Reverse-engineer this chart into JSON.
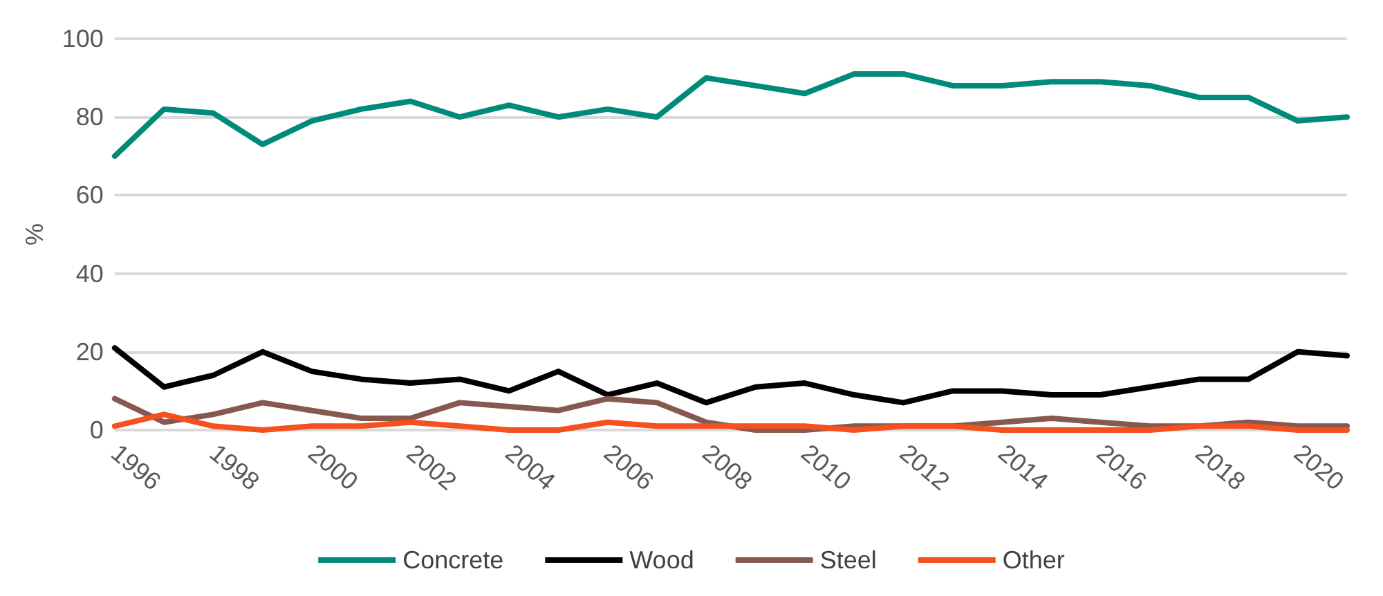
{
  "chart_data": {
    "type": "line",
    "ylabel": "%",
    "categories": [
      "1996",
      null,
      "1998",
      null,
      "2000",
      null,
      "2002",
      null,
      "2004",
      null,
      "2006",
      null,
      "2008",
      null,
      "2010",
      null,
      "2012",
      null,
      "2014",
      null,
      "2016",
      null,
      "2018",
      null,
      "2020",
      null
    ],
    "series": [
      {
        "name": "Concrete",
        "color": "#008a7a",
        "values": [
          70,
          82,
          81,
          73,
          79,
          82,
          84,
          80,
          83,
          80,
          82,
          80,
          90,
          88,
          86,
          91,
          91,
          88,
          88,
          89,
          89,
          88,
          85,
          85,
          79,
          80
        ]
      },
      {
        "name": "Wood",
        "color": "#000000",
        "values": [
          21,
          11,
          14,
          20,
          15,
          13,
          12,
          13,
          10,
          15,
          9,
          12,
          7,
          11,
          12,
          9,
          7,
          10,
          10,
          9,
          9,
          11,
          13,
          13,
          20,
          19
        ]
      },
      {
        "name": "Steel",
        "color": "#875850",
        "values": [
          8,
          2,
          4,
          7,
          5,
          3,
          3,
          7,
          6,
          5,
          8,
          7,
          2,
          0,
          0,
          1,
          1,
          1,
          2,
          3,
          2,
          1,
          1,
          2,
          1,
          1
        ]
      },
      {
        "name": "Other",
        "color": "#f4511e",
        "values": [
          1,
          4,
          1,
          0,
          1,
          1,
          2,
          1,
          0,
          0,
          2,
          1,
          1,
          1,
          1,
          0,
          1,
          1,
          0,
          0,
          0,
          0,
          1,
          1,
          0,
          0
        ]
      }
    ],
    "ylim": [
      0,
      100
    ],
    "yticks": [
      0,
      20,
      40,
      60,
      80,
      100
    ],
    "grid": "y",
    "legend": "bottom",
    "marker": "none",
    "line_style": "solid"
  }
}
